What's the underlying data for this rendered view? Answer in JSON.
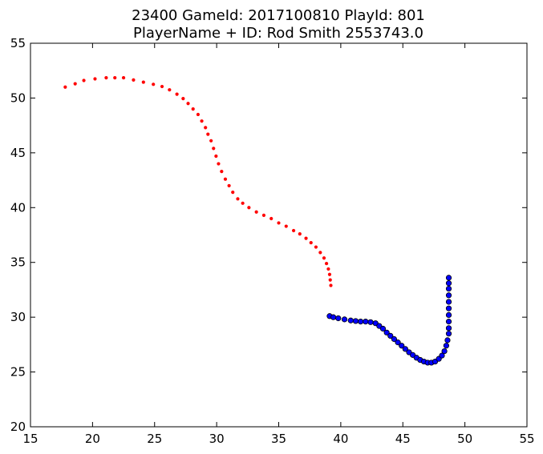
{
  "chart_data": {
    "type": "scatter",
    "title_lines": [
      "23400 GameId: 2017100810 PlayId: 801",
      "PlayerName + ID: Rod Smith 2553743.0"
    ],
    "xlabel": "",
    "ylabel": "",
    "xlim": [
      15,
      55
    ],
    "ylim": [
      20,
      55
    ],
    "x_ticks": [
      15,
      20,
      25,
      30,
      35,
      40,
      45,
      50,
      55
    ],
    "y_ticks": [
      20,
      25,
      30,
      35,
      40,
      45,
      50,
      55
    ],
    "grid": false,
    "legend": "none",
    "series": [
      {
        "color": "#ff0000",
        "marker": "small-dot",
        "points": [
          [
            17.8,
            51.0
          ],
          [
            18.6,
            51.3
          ],
          [
            19.3,
            51.6
          ],
          [
            20.2,
            51.75
          ],
          [
            21.1,
            51.85
          ],
          [
            21.8,
            51.85
          ],
          [
            22.5,
            51.85
          ],
          [
            23.3,
            51.65
          ],
          [
            24.1,
            51.45
          ],
          [
            24.9,
            51.25
          ],
          [
            25.6,
            51.05
          ],
          [
            26.2,
            50.75
          ],
          [
            26.8,
            50.35
          ],
          [
            27.3,
            49.95
          ],
          [
            27.7,
            49.5
          ],
          [
            28.1,
            49.0
          ],
          [
            28.5,
            48.5
          ],
          [
            28.8,
            47.9
          ],
          [
            29.1,
            47.3
          ],
          [
            29.3,
            46.7
          ],
          [
            29.55,
            46.1
          ],
          [
            29.75,
            45.4
          ],
          [
            29.95,
            44.7
          ],
          [
            30.15,
            44.0
          ],
          [
            30.4,
            43.3
          ],
          [
            30.7,
            42.6
          ],
          [
            31.0,
            42.0
          ],
          [
            31.3,
            41.4
          ],
          [
            31.7,
            40.8
          ],
          [
            32.1,
            40.4
          ],
          [
            32.6,
            40.0
          ],
          [
            33.2,
            39.6
          ],
          [
            33.8,
            39.3
          ],
          [
            34.4,
            39.0
          ],
          [
            35.0,
            38.6
          ],
          [
            35.6,
            38.3
          ],
          [
            36.2,
            37.9
          ],
          [
            36.7,
            37.6
          ],
          [
            37.2,
            37.2
          ],
          [
            37.6,
            36.8
          ],
          [
            38.0,
            36.4
          ],
          [
            38.35,
            35.9
          ],
          [
            38.65,
            35.4
          ],
          [
            38.85,
            34.9
          ],
          [
            39.0,
            34.4
          ],
          [
            39.1,
            33.9
          ],
          [
            39.15,
            33.4
          ],
          [
            39.2,
            32.9
          ]
        ]
      },
      {
        "color": "#0000ff",
        "marker": "circle",
        "points": [
          [
            39.1,
            30.1
          ],
          [
            39.4,
            30.0
          ],
          [
            39.8,
            29.9
          ],
          [
            40.3,
            29.8
          ],
          [
            40.8,
            29.7
          ],
          [
            41.2,
            29.65
          ],
          [
            41.6,
            29.6
          ],
          [
            42.0,
            29.6
          ],
          [
            42.4,
            29.55
          ],
          [
            42.8,
            29.45
          ],
          [
            43.1,
            29.2
          ],
          [
            43.4,
            28.95
          ],
          [
            43.7,
            28.6
          ],
          [
            44.0,
            28.3
          ],
          [
            44.3,
            28.0
          ],
          [
            44.6,
            27.7
          ],
          [
            44.9,
            27.4
          ],
          [
            45.2,
            27.1
          ],
          [
            45.5,
            26.8
          ],
          [
            45.8,
            26.55
          ],
          [
            46.1,
            26.3
          ],
          [
            46.4,
            26.1
          ],
          [
            46.7,
            25.95
          ],
          [
            47.0,
            25.85
          ],
          [
            47.3,
            25.85
          ],
          [
            47.6,
            25.95
          ],
          [
            47.9,
            26.2
          ],
          [
            48.15,
            26.5
          ],
          [
            48.35,
            26.9
          ],
          [
            48.5,
            27.4
          ],
          [
            48.6,
            27.9
          ],
          [
            48.7,
            28.5
          ],
          [
            48.7,
            29.0
          ],
          [
            48.7,
            29.6
          ],
          [
            48.7,
            30.2
          ],
          [
            48.7,
            30.8
          ],
          [
            48.7,
            31.4
          ],
          [
            48.7,
            32.0
          ],
          [
            48.7,
            32.6
          ],
          [
            48.7,
            33.1
          ],
          [
            48.7,
            33.6
          ]
        ]
      }
    ]
  }
}
